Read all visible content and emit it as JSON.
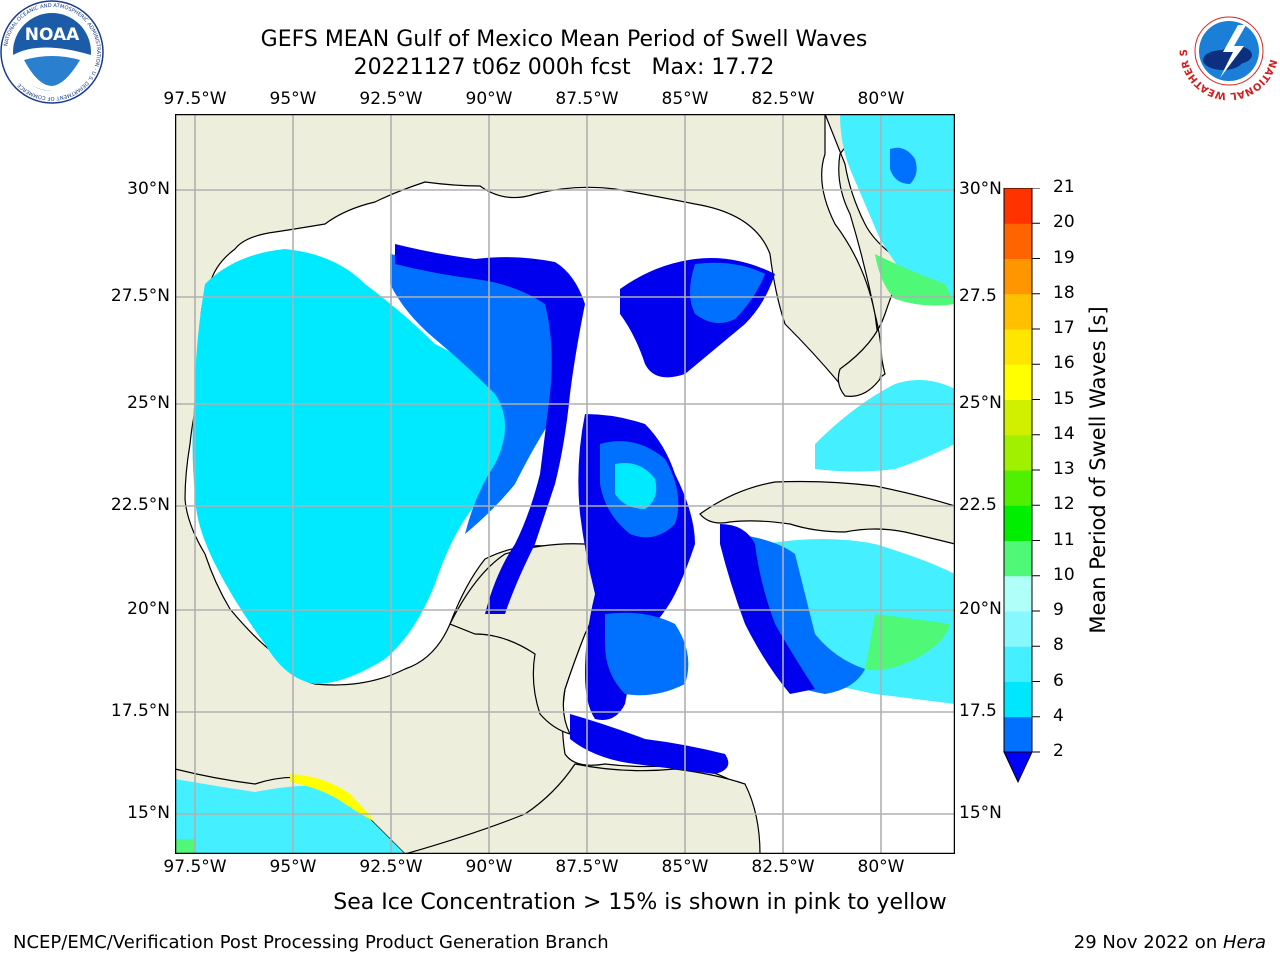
{
  "header": {
    "title_line1": "GEFS MEAN Gulf of Mexico Mean Period of Swell Waves",
    "title_line2": "20221127 t06z 000h fcst   Max: 17.72"
  },
  "logos": {
    "left": "NOAA",
    "left_ring_text": "NATIONAL OCEANIC AND ATMOSPHERIC ADMINISTRATION · U.S. DEPARTMENT OF COMMERCE",
    "right_ring_text": "NATIONAL WEATHER SERVICE"
  },
  "map": {
    "lon_labels": [
      "97.5°W",
      "95°W",
      "92.5°W",
      "90°W",
      "87.5°W",
      "85°W",
      "82.5°W",
      "80°W"
    ],
    "lat_labels_left": [
      "30°N",
      "27.5°N",
      "25°N",
      "22.5°N",
      "20°N",
      "17.5°N",
      "15°N"
    ],
    "lat_labels_right": [
      "30°N",
      "27.5",
      "25°N",
      "22.5",
      "20°N",
      "17.5",
      "15°N"
    ],
    "colors": {
      "land": "#eeeedd",
      "ocean_default": "#ffffff",
      "grid": "#b0b0b0"
    }
  },
  "colorbar": {
    "label": "Mean Period of Swell Waves [s]",
    "ticks": [
      "2",
      "4",
      "6",
      "8",
      "9",
      "10",
      "11",
      "12",
      "13",
      "14",
      "15",
      "16",
      "17",
      "18",
      "19",
      "20",
      "21"
    ],
    "bands": [
      "#0000ff",
      "#0070ff",
      "#00e6ff",
      "#44f0ff",
      "#88f8ff",
      "#b0fff8",
      "#50f878",
      "#00ee00",
      "#50f000",
      "#a0f000",
      "#d0f000",
      "#ffff00",
      "#ffe600",
      "#ffc000",
      "#ff9600",
      "#ff6400",
      "#ff3200",
      "#ff0000"
    ]
  },
  "caption": "Sea Ice Concentration > 15% is shown in pink to yellow",
  "footer": {
    "left": "NCEP/EMC/Verification Post Processing Product Generation Branch",
    "right_date": "29 Nov 2022 on ",
    "right_host": "Hera"
  }
}
